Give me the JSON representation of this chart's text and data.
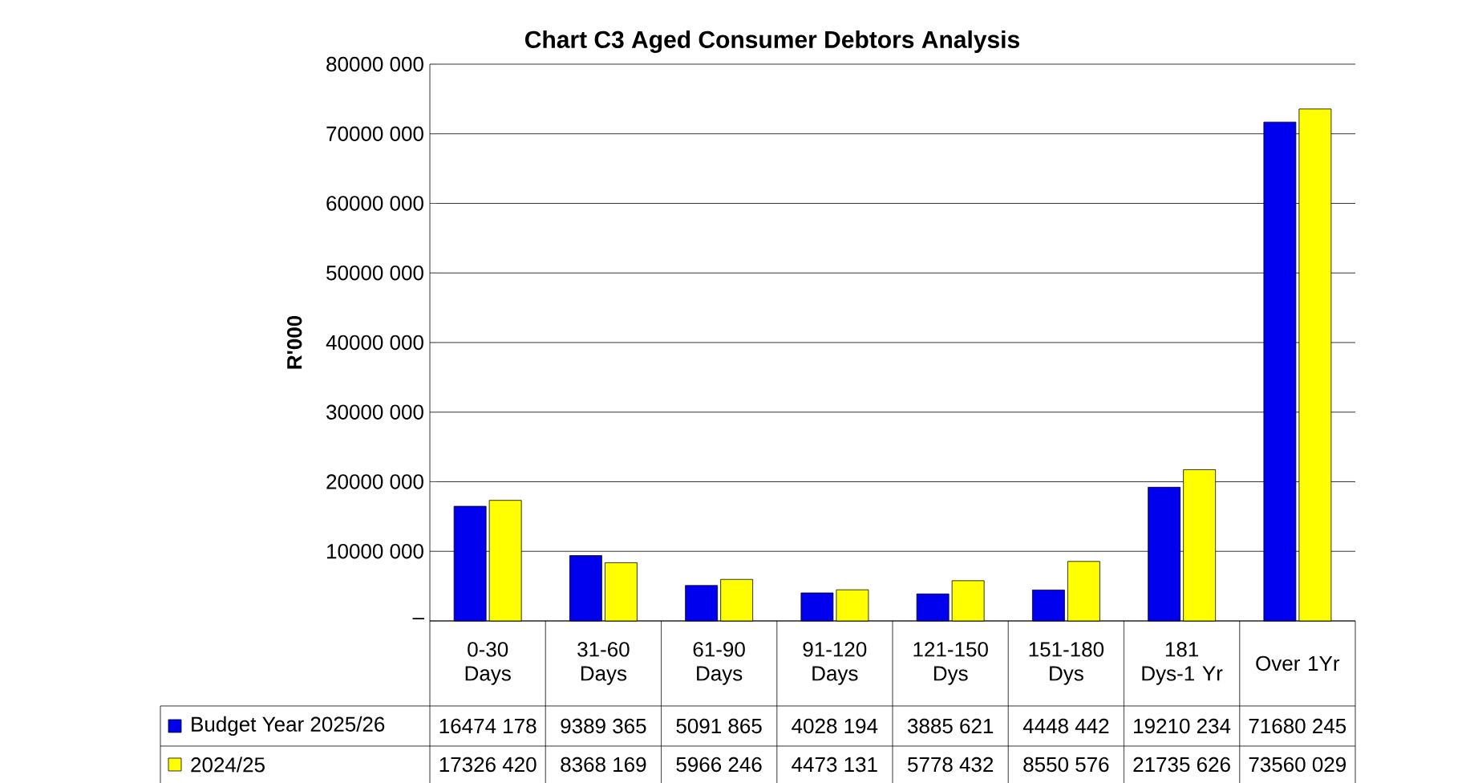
{
  "chart_data": {
    "type": "bar",
    "title": "Chart C3 Aged Consumer Debtors Analysis",
    "ylabel": "R'000",
    "categories": [
      "0-30 Days",
      "31-60 Days",
      "61-90 Days",
      "91-120 Days",
      "121-150 Dys",
      "151-180 Dys",
      "181 Dys-1 Yr",
      "Over 1Yr"
    ],
    "series": [
      {
        "name": "Budget Year 2025/26",
        "color": "#0000ee",
        "values": [
          16474178,
          9389365,
          5091865,
          4028194,
          3885621,
          4448442,
          19210234,
          71680245
        ],
        "value_labels": [
          "16474 178",
          "9389 365",
          "5091 865",
          "4028 194",
          "3885 621",
          "4448 442",
          "19210 234",
          "71680 245"
        ]
      },
      {
        "name": "2024/25",
        "color": "#ffff00",
        "values": [
          17326420,
          8368169,
          5966246,
          4473131,
          5778432,
          8550576,
          21735626,
          73560029
        ],
        "value_labels": [
          "17326 420",
          "8368 169",
          "5966 246",
          "4473 131",
          "5778 432",
          "8550 576",
          "21735 626",
          "73560 029"
        ]
      }
    ],
    "ylim": [
      0,
      80000000
    ],
    "yticks": [
      {
        "value": 0,
        "label": "–"
      },
      {
        "value": 10000000,
        "label": "10000 000"
      },
      {
        "value": 20000000,
        "label": "20000 000"
      },
      {
        "value": 30000000,
        "label": "30000 000"
      },
      {
        "value": 40000000,
        "label": "40000 000"
      },
      {
        "value": 50000000,
        "label": "50000 000"
      },
      {
        "value": 60000000,
        "label": "60000 000"
      },
      {
        "value": 70000000,
        "label": "70000 000"
      },
      {
        "value": 80000000,
        "label": "80000 000"
      }
    ],
    "grid": "y",
    "legend": "bottom"
  }
}
